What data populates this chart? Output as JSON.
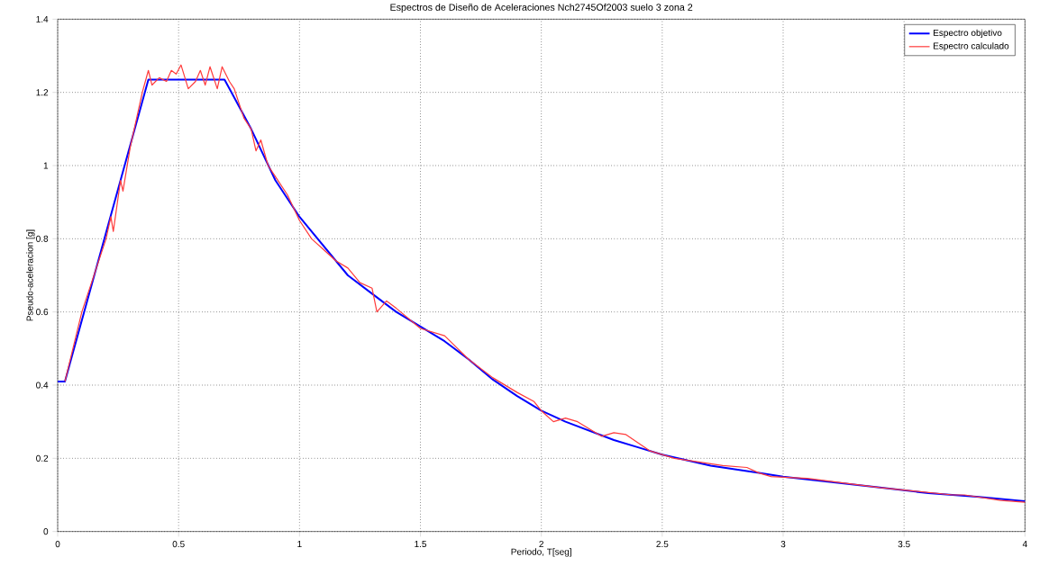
{
  "chart_data": {
    "type": "line",
    "title": "Espectros de Diseño de Aceleraciones Nch2745Of2003 suelo 3 zona 2",
    "xlabel": "Periodo, T[seg]",
    "ylabel": "Pseudo-aceleracion [g]",
    "xlim": [
      0,
      4
    ],
    "ylim": [
      0,
      1.4
    ],
    "xticks": [
      0,
      0.5,
      1,
      1.5,
      2,
      2.5,
      3,
      3.5,
      4
    ],
    "yticks": [
      0,
      0.2,
      0.4,
      0.6,
      0.8,
      1,
      1.2,
      1.4
    ],
    "grid": true,
    "legend": "top right",
    "line_style": "solid",
    "marker": "none",
    "series": [
      {
        "name": "Espectro objetivo",
        "color": "#0000ff",
        "x": [
          0,
          0.03,
          0.375,
          0.69,
          0.8,
          0.9,
          1,
          1.1,
          1.2,
          1.3,
          1.4,
          1.5,
          1.6,
          1.7,
          1.8,
          1.9,
          2,
          2.1,
          2.2,
          2.3,
          2.4,
          2.5,
          2.6,
          2.7,
          2.8,
          2.9,
          3,
          3.2,
          3.4,
          3.6,
          3.8,
          4
        ],
        "values": [
          0.41,
          0.41,
          1.235,
          1.235,
          1.1,
          0.96,
          0.86,
          0.78,
          0.7,
          0.65,
          0.6,
          0.56,
          0.52,
          0.47,
          0.415,
          0.37,
          0.33,
          0.3,
          0.275,
          0.25,
          0.23,
          0.21,
          0.195,
          0.18,
          0.17,
          0.16,
          0.15,
          0.135,
          0.12,
          0.105,
          0.095,
          0.083
        ]
      },
      {
        "name": "Espectro calculado",
        "color": "#ff3b3b",
        "x": [
          0.03,
          0.1,
          0.2,
          0.22,
          0.23,
          0.26,
          0.27,
          0.3,
          0.35,
          0.375,
          0.39,
          0.42,
          0.45,
          0.47,
          0.49,
          0.51,
          0.54,
          0.57,
          0.59,
          0.61,
          0.63,
          0.66,
          0.68,
          0.71,
          0.73,
          0.77,
          0.8,
          0.82,
          0.84,
          0.87,
          0.9,
          0.95,
          1.0,
          1.05,
          1.1,
          1.15,
          1.2,
          1.25,
          1.3,
          1.32,
          1.36,
          1.4,
          1.5,
          1.6,
          1.7,
          1.8,
          1.9,
          1.97,
          2,
          2.05,
          2.1,
          2.15,
          2.25,
          2.3,
          2.35,
          2.45,
          2.55,
          2.6,
          2.75,
          2.85,
          2.9,
          2.95,
          3.1,
          3.4,
          3.7,
          3.75,
          3.9,
          4
        ],
        "values": [
          0.41,
          0.6,
          0.8,
          0.86,
          0.82,
          0.96,
          0.93,
          1.05,
          1.2,
          1.26,
          1.22,
          1.24,
          1.23,
          1.26,
          1.25,
          1.275,
          1.21,
          1.23,
          1.26,
          1.22,
          1.27,
          1.21,
          1.27,
          1.23,
          1.21,
          1.13,
          1.1,
          1.04,
          1.07,
          1.0,
          0.97,
          0.92,
          0.85,
          0.8,
          0.77,
          0.74,
          0.72,
          0.68,
          0.665,
          0.6,
          0.63,
          0.61,
          0.555,
          0.535,
          0.47,
          0.42,
          0.38,
          0.355,
          0.33,
          0.3,
          0.31,
          0.3,
          0.26,
          0.27,
          0.265,
          0.22,
          0.2,
          0.195,
          0.18,
          0.175,
          0.16,
          0.15,
          0.145,
          0.12,
          0.1,
          0.1,
          0.085,
          0.08
        ]
      }
    ]
  }
}
